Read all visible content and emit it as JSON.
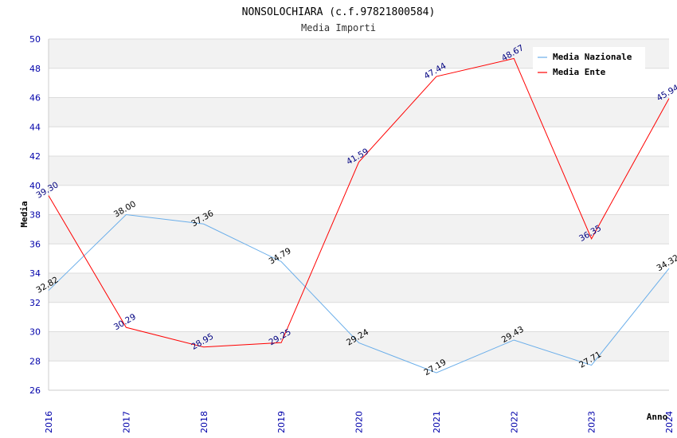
{
  "chart_data": {
    "type": "line",
    "title": "NONSOLOCHIARA (c.f.97821800584)",
    "subtitle": "Media Importi",
    "xlabel": "Anno",
    "ylabel": "Media",
    "categories": [
      "2016",
      "2017",
      "2018",
      "2019",
      "2020",
      "2021",
      "2022",
      "2023",
      "2024"
    ],
    "ylim": [
      26,
      50
    ],
    "yticks": [
      26,
      28,
      30,
      32,
      34,
      36,
      38,
      40,
      42,
      44,
      46,
      48,
      50
    ],
    "grid": "horizontal bands",
    "legend_position": "top-right",
    "series": [
      {
        "name": "Media Nazionale",
        "color": "#6aaeea",
        "label_color": "#000000",
        "values": [
          32.82,
          38.0,
          37.36,
          34.79,
          29.24,
          27.19,
          29.43,
          27.71,
          34.32
        ],
        "labels": [
          "32.82",
          "38.00",
          "37.36",
          "34.79",
          "29.24",
          "27.19",
          "29.43",
          "27.71",
          "34.32"
        ]
      },
      {
        "name": "Media Ente",
        "color": "#ff0000",
        "label_color": "#000080",
        "values": [
          39.3,
          30.29,
          28.95,
          29.25,
          41.59,
          47.44,
          48.67,
          36.35,
          45.94
        ],
        "labels": [
          "39.30",
          "30.29",
          "28.95",
          "29.25",
          "41.59",
          "47.44",
          "48.67",
          "36.35",
          "45.94"
        ]
      }
    ]
  }
}
